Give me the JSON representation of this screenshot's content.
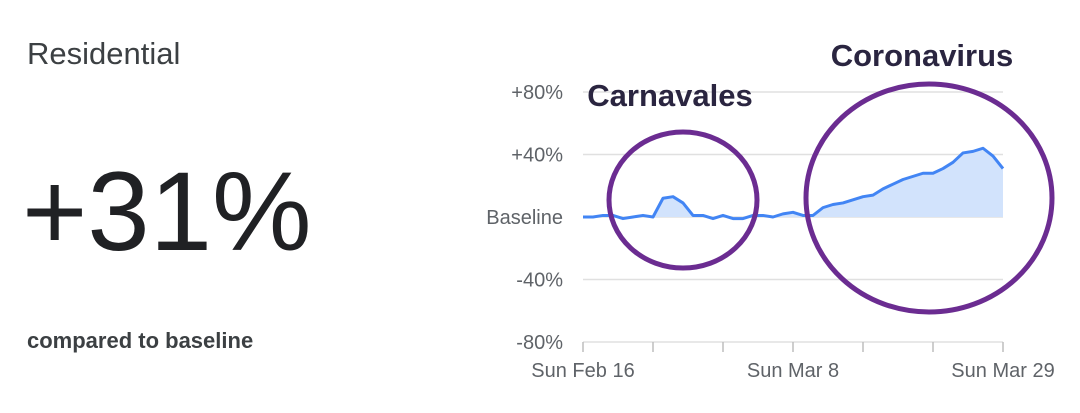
{
  "chart_data": {
    "type": "area",
    "title": "Residential",
    "headline": "+31%",
    "caption": "compared to baseline",
    "categories": [
      "Sun Feb 16",
      null,
      null,
      null,
      null,
      null,
      null,
      null,
      null,
      null,
      null,
      null,
      null,
      null,
      null,
      null,
      null,
      null,
      null,
      null,
      null,
      "Sun Mar 8",
      null,
      null,
      null,
      null,
      null,
      null,
      null,
      null,
      null,
      null,
      null,
      null,
      null,
      null,
      null,
      null,
      null,
      null,
      null,
      null,
      "Sun Mar 29"
    ],
    "values": [
      0,
      0,
      1,
      1,
      -1,
      0,
      1,
      0,
      12,
      13,
      9,
      1,
      1,
      -1,
      1,
      -1,
      -1,
      1,
      1,
      0,
      2,
      3,
      1,
      1,
      6,
      8,
      9,
      11,
      13,
      14,
      18,
      21,
      24,
      26,
      28,
      28,
      31,
      35,
      41,
      42,
      44,
      39,
      31
    ],
    "color": "#4285f4",
    "fill": "#d2e3fc",
    "ylim": [
      -80,
      80
    ],
    "yticks": [
      {
        "value": 80,
        "label": "+80%"
      },
      {
        "value": 40,
        "label": "+40%"
      },
      {
        "value": 0,
        "label": "Baseline"
      },
      {
        "value": -40,
        "label": "-40%"
      },
      {
        "value": -80,
        "label": "-80%"
      }
    ],
    "grid": true,
    "annotations": [
      {
        "text": "Carnavales"
      },
      {
        "text": "Coronavirus"
      }
    ]
  }
}
